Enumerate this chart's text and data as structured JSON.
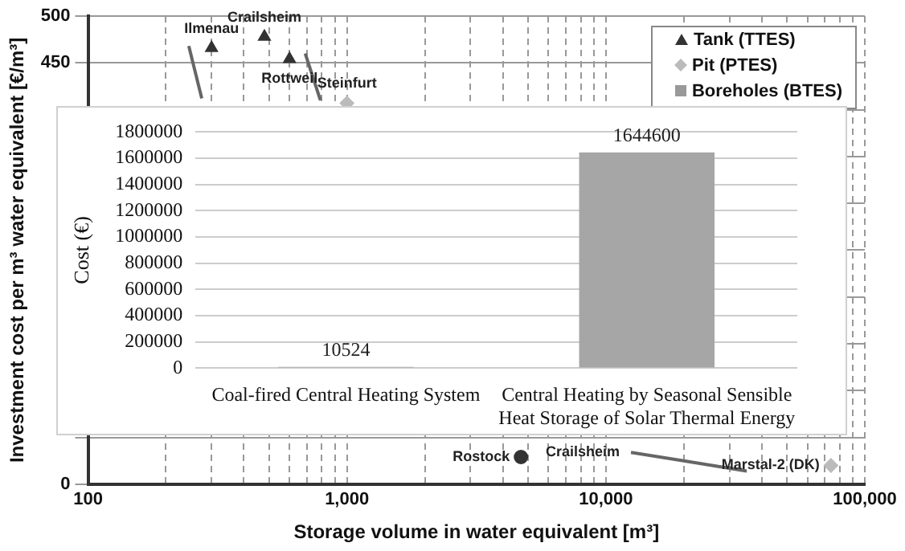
{
  "chart_data": [
    {
      "type": "scatter",
      "xlabel": "Storage volume in water equivalent [m³]",
      "ylabel": "Investment cost per m³ water equivalent [€/m³]",
      "log": "x",
      "grid": true,
      "legend": "top right",
      "xlim": [
        100,
        100000
      ],
      "xticks": [
        100,
        {
          "value": 200,
          "label": null
        },
        {
          "value": 300,
          "label": null
        },
        {
          "value": 400,
          "label": null
        },
        {
          "value": 500,
          "label": null
        },
        {
          "value": 600,
          "label": null
        },
        {
          "value": 700,
          "label": null
        },
        {
          "value": 800,
          "label": null
        },
        {
          "value": 900,
          "label": null
        },
        {
          "value": 1000,
          "label": "1,000"
        },
        {
          "value": 2000,
          "label": null
        },
        {
          "value": 3000,
          "label": null
        },
        {
          "value": 4000,
          "label": null
        },
        {
          "value": 5000,
          "label": null
        },
        {
          "value": 6000,
          "label": null
        },
        {
          "value": 7000,
          "label": null
        },
        {
          "value": 8000,
          "label": null
        },
        {
          "value": 9000,
          "label": null
        },
        {
          "value": 10000,
          "label": "10,000"
        },
        {
          "value": 20000,
          "label": null
        },
        {
          "value": 30000,
          "label": null
        },
        {
          "value": 40000,
          "label": null
        },
        {
          "value": 50000,
          "label": null
        },
        {
          "value": 60000,
          "label": null
        },
        {
          "value": 70000,
          "label": null
        },
        {
          "value": 80000,
          "label": null
        },
        {
          "value": 90000,
          "label": null
        },
        {
          "value": 100000,
          "label": "100,000"
        }
      ],
      "ylim": [
        0,
        500
      ],
      "yticks": [
        0,
        {
          "value": 50,
          "label": null
        },
        {
          "value": 100,
          "label": null
        },
        {
          "value": 150,
          "label": null
        },
        {
          "value": 200,
          "label": null
        },
        {
          "value": 250,
          "label": null
        },
        {
          "value": 300,
          "label": null
        },
        {
          "value": 350,
          "label": null
        },
        {
          "value": 400,
          "label": null
        },
        450,
        500
      ],
      "series": [
        {
          "name": "Tank (TTES)",
          "type": "scatter",
          "marker": "triangle",
          "color": "#333333",
          "x": [
            300,
            480,
            600
          ],
          "values": [
            466,
            478,
            454
          ]
        },
        {
          "name": "Pit (PTES)",
          "type": "scatter",
          "marker": "diamond",
          "color": "#bbbbbb",
          "x": [
            1000,
            74000
          ],
          "values": [
            407,
            20
          ]
        },
        {
          "name": "Boreholes (BTES)",
          "type": "scatter",
          "marker": "square",
          "color": "#999999"
        },
        {
          "type": "scatter",
          "marker": "circle",
          "color": "#333333",
          "x": [
            4700
          ],
          "values": [
            29
          ]
        },
        {
          "type": "line",
          "color": "#666666",
          "x": [
            245,
            275
          ],
          "values": [
            468,
            412
          ]
        },
        {
          "type": "line",
          "color": "#666666",
          "x": [
            690,
            790
          ],
          "values": [
            460,
            410
          ]
        },
        {
          "type": "line",
          "color": "#666666",
          "x": [
            12500,
            20000,
            35000
          ],
          "values": [
            34,
            25,
            14
          ]
        }
      ],
      "annotations": [
        {
          "text": "Ilmenau",
          "x": 300,
          "y": 466
        },
        {
          "text": "Crailsheim",
          "x": 480,
          "y": 478
        },
        {
          "text": "Rottweil",
          "x": 600,
          "y": 454
        },
        {
          "text": "Steinfurt",
          "x": 1000,
          "y": 407
        },
        {
          "text": "Rostock",
          "x": 4700,
          "y": 29
        },
        {
          "text": "Crailsheim",
          "x": 12500,
          "y": 34
        },
        {
          "text": "Marstal-2 (DK)",
          "x": 74000,
          "y": 20
        }
      ]
    },
    {
      "type": "bar",
      "ylabel": "Cost (€)",
      "categories": [
        "Coal-fired Central Heating System",
        "Central Heating by Seasonal Sensible Heat Storage of Solar Thermal Energy"
      ],
      "values": [
        10524,
        1644600
      ],
      "color": "#a6a6a6",
      "data_labels": true,
      "grid": "y",
      "legend": false,
      "ylim": [
        0,
        1800000
      ],
      "yticks": [
        0,
        200000,
        400000,
        600000,
        800000,
        1000000,
        1200000,
        1400000,
        1600000,
        1800000
      ]
    }
  ]
}
